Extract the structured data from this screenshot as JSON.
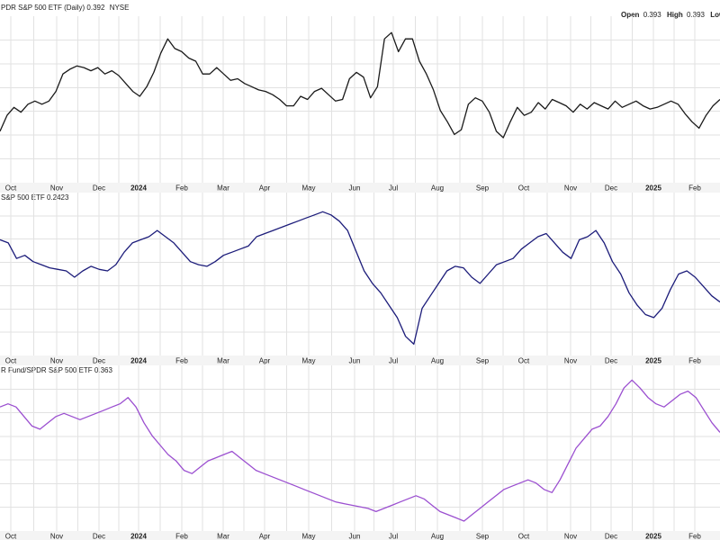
{
  "header": {
    "exchange": "NYSE",
    "open_label": "Open",
    "open_value": "0.393",
    "high_label": "High",
    "high_value": "0.393",
    "low_label": "Low"
  },
  "colors": {
    "panel1": "#1a1a1a",
    "panel2": "#1c1c7a",
    "panel3": "#9b4fd0",
    "grid": "#e2e2e2",
    "axis_strip": "#f4f4f4"
  },
  "chart_data": [
    {
      "type": "line",
      "title": "PDR S&P 500 ETF (Daily) 0.392",
      "xlabels": [
        "Oct",
        "Nov",
        "Dec",
        "2024",
        "Feb",
        "Mar",
        "Apr",
        "May",
        "Jun",
        "Jul",
        "Aug",
        "Sep",
        "Oct",
        "Nov",
        "Dec",
        "2025",
        "Feb"
      ],
      "xlabels_bold": [
        "2024",
        "2025"
      ],
      "ylim": [
        0,
        1
      ],
      "series": [
        {
          "values": [
            0.3,
            0.4,
            0.45,
            0.42,
            0.47,
            0.49,
            0.47,
            0.49,
            0.55,
            0.66,
            0.69,
            0.71,
            0.7,
            0.68,
            0.7,
            0.66,
            0.68,
            0.65,
            0.6,
            0.55,
            0.52,
            0.58,
            0.67,
            0.79,
            0.88,
            0.82,
            0.8,
            0.76,
            0.74,
            0.66,
            0.66,
            0.7,
            0.66,
            0.62,
            0.63,
            0.6,
            0.58,
            0.56,
            0.55,
            0.53,
            0.5,
            0.46,
            0.46,
            0.52,
            0.5,
            0.55,
            0.57,
            0.53,
            0.49,
            0.5,
            0.63,
            0.67,
            0.64,
            0.51,
            0.58,
            0.88,
            0.92,
            0.8,
            0.88,
            0.88,
            0.74,
            0.66,
            0.56,
            0.43,
            0.36,
            0.28,
            0.31,
            0.47,
            0.51,
            0.49,
            0.42,
            0.3,
            0.26,
            0.36,
            0.45,
            0.4,
            0.42,
            0.48,
            0.44,
            0.5,
            0.48,
            0.46,
            0.42,
            0.47,
            0.44,
            0.48,
            0.46,
            0.44,
            0.49,
            0.45,
            0.47,
            0.49,
            0.46,
            0.44,
            0.45,
            0.47,
            0.49,
            0.47,
            0.41,
            0.36,
            0.32,
            0.4,
            0.46,
            0.5
          ]
        }
      ]
    },
    {
      "type": "line",
      "title": "S&P 500 ETF 0.2423",
      "xlabels": [
        "Oct",
        "Nov",
        "Dec",
        "2024",
        "Feb",
        "Mar",
        "Apr",
        "May",
        "Jun",
        "Jul",
        "Aug",
        "Sep",
        "Oct",
        "Nov",
        "Dec",
        "2025",
        "Feb"
      ],
      "xlabels_bold": [
        "2024",
        "2025"
      ],
      "ylim": [
        0,
        1
      ],
      "series": [
        {
          "values": [
            0.72,
            0.7,
            0.6,
            0.62,
            0.58,
            0.56,
            0.54,
            0.53,
            0.52,
            0.48,
            0.52,
            0.55,
            0.53,
            0.52,
            0.56,
            0.64,
            0.7,
            0.72,
            0.74,
            0.78,
            0.74,
            0.7,
            0.64,
            0.58,
            0.56,
            0.55,
            0.58,
            0.62,
            0.64,
            0.66,
            0.68,
            0.74,
            0.76,
            0.78,
            0.8,
            0.82,
            0.84,
            0.86,
            0.88,
            0.9,
            0.88,
            0.84,
            0.78,
            0.65,
            0.52,
            0.44,
            0.38,
            0.3,
            0.22,
            0.1,
            0.05,
            0.28,
            0.36,
            0.44,
            0.52,
            0.55,
            0.54,
            0.48,
            0.44,
            0.5,
            0.56,
            0.58,
            0.6,
            0.66,
            0.7,
            0.74,
            0.76,
            0.7,
            0.64,
            0.6,
            0.72,
            0.74,
            0.78,
            0.7,
            0.58,
            0.5,
            0.38,
            0.3,
            0.24,
            0.22,
            0.28,
            0.4,
            0.5,
            0.52,
            0.48,
            0.42,
            0.36,
            0.32
          ]
        }
      ]
    },
    {
      "type": "line",
      "title": "R Fund/SPDR S&P 500 ETF 0.363",
      "xlabels": [
        "Oct",
        "Nov",
        "Dec",
        "2024",
        "Feb",
        "Mar",
        "Apr",
        "May",
        "Jun",
        "Jul",
        "Aug",
        "Sep",
        "Oct",
        "Nov",
        "Dec",
        "2025",
        "Feb"
      ],
      "xlabels_bold": [
        "2024",
        "2025"
      ],
      "ylim": [
        0,
        1
      ],
      "series": [
        {
          "values": [
            0.76,
            0.78,
            0.76,
            0.7,
            0.64,
            0.62,
            0.66,
            0.7,
            0.72,
            0.7,
            0.68,
            0.7,
            0.72,
            0.74,
            0.76,
            0.78,
            0.82,
            0.76,
            0.66,
            0.58,
            0.52,
            0.46,
            0.42,
            0.36,
            0.34,
            0.38,
            0.42,
            0.44,
            0.46,
            0.48,
            0.44,
            0.4,
            0.36,
            0.34,
            0.32,
            0.3,
            0.28,
            0.26,
            0.24,
            0.22,
            0.2,
            0.18,
            0.16,
            0.15,
            0.14,
            0.13,
            0.12,
            0.1,
            0.12,
            0.14,
            0.16,
            0.18,
            0.2,
            0.18,
            0.14,
            0.1,
            0.08,
            0.06,
            0.04,
            0.08,
            0.12,
            0.16,
            0.2,
            0.24,
            0.26,
            0.28,
            0.3,
            0.28,
            0.24,
            0.22,
            0.3,
            0.4,
            0.5,
            0.56,
            0.62,
            0.64,
            0.7,
            0.78,
            0.88,
            0.93,
            0.88,
            0.82,
            0.78,
            0.76,
            0.8,
            0.84,
            0.86,
            0.82,
            0.74,
            0.66,
            0.6
          ]
        }
      ]
    }
  ]
}
